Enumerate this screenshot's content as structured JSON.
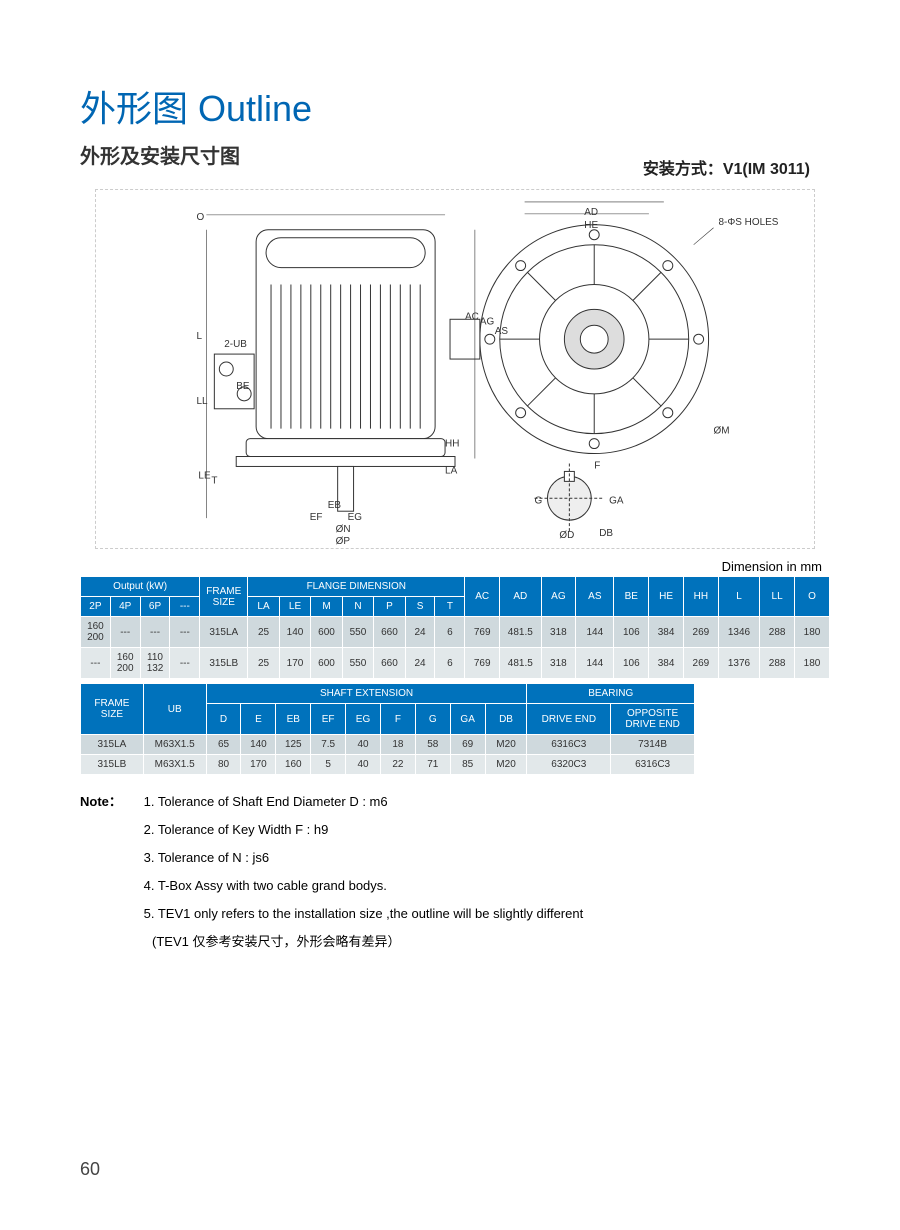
{
  "header": {
    "title": "外形图 Outline",
    "subtitle": "外形及安装尺寸图",
    "mounting": "安装方式：V1(IM 3011)"
  },
  "diagram": {
    "labels": [
      "O",
      "L",
      "LL",
      "LE",
      "T",
      "2-UB",
      "BE",
      "EF",
      "EB",
      "EG",
      "ØN",
      "ØP",
      "LA",
      "HH",
      "AC",
      "AG",
      "AS",
      "AD",
      "HE",
      "8-ΦS HOLES",
      "ØM",
      "F",
      "G",
      "GA",
      "ØD",
      "DB"
    ]
  },
  "dimension_note": "Dimension in mm",
  "table1": {
    "group_headers": {
      "output": "Output (kW)",
      "frame": "FRAME SIZE",
      "flange": "FLANGE DIMENSION"
    },
    "sub_headers": [
      "2P",
      "4P",
      "6P",
      "---",
      "",
      "LA",
      "LE",
      "M",
      "N",
      "P",
      "S",
      "T",
      "AC",
      "AD",
      "AG",
      "AS",
      "BE",
      "HE",
      "HH",
      "L",
      "LL",
      "O"
    ],
    "rows": [
      [
        "160\n200",
        "---",
        "---",
        "---",
        "315LA",
        "25",
        "140",
        "600",
        "550",
        "660",
        "24",
        "6",
        "769",
        "481.5",
        "318",
        "144",
        "106",
        "384",
        "269",
        "1346",
        "288",
        "180"
      ],
      [
        "---",
        "160\n200",
        "110\n132",
        "---",
        "315LB",
        "25",
        "170",
        "600",
        "550",
        "660",
        "24",
        "6",
        "769",
        "481.5",
        "318",
        "144",
        "106",
        "384",
        "269",
        "1376",
        "288",
        "180"
      ]
    ]
  },
  "table2": {
    "group_headers": {
      "frame": "FRAME SIZE",
      "ub": "UB",
      "shaft": "SHAFT EXTENSION",
      "bearing": "BEARING"
    },
    "sub_headers": [
      "D",
      "E",
      "EB",
      "EF",
      "EG",
      "F",
      "G",
      "GA",
      "DB",
      "DRIVE END",
      "OPPOSITE DRIVE END"
    ],
    "rows": [
      [
        "315LA",
        "M63X1.5",
        "65",
        "140",
        "125",
        "7.5",
        "40",
        "18",
        "58",
        "69",
        "M20",
        "6316C3",
        "7314B"
      ],
      [
        "315LB",
        "M63X1.5",
        "80",
        "170",
        "160",
        "5",
        "40",
        "22",
        "71",
        "85",
        "M20",
        "6320C3",
        "6316C3"
      ]
    ]
  },
  "notes": {
    "label": "Note：",
    "items": [
      "1. Tolerance of Shaft End Diameter D : m6",
      "2. Tolerance of Key Width F : h9",
      "3. Tolerance of N : js6",
      "4. T-Box Assy with two cable grand bodys.",
      "5. TEV1 only refers to the installation size ,the outline will be slightly different"
    ],
    "cn": "(TEV1 仅参考安装尺寸，外形会略有差异）"
  },
  "page_number": "60",
  "colors": {
    "brand_blue": "#0066b3",
    "header_blue": "#0072bc",
    "row_a": "#cfd9dd",
    "row_b": "#e2e8ea"
  }
}
